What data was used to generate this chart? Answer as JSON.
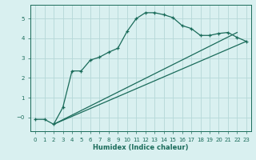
{
  "xlabel": "Humidex (Indice chaleur)",
  "bg_color": "#d9f0f0",
  "grid_color": "#b5d8d8",
  "line_color": "#1a6b5a",
  "xlim": [
    -0.5,
    23.5
  ],
  "ylim": [
    -0.7,
    5.7
  ],
  "ytick_values": [
    0,
    1,
    2,
    3,
    4,
    5
  ],
  "ytick_labels": [
    "−0",
    "1",
    "2",
    "3",
    "4",
    "5"
  ],
  "series1_x": [
    0,
    1,
    2,
    3,
    4,
    5,
    6,
    7,
    8,
    9,
    10,
    11,
    12,
    13,
    14,
    15,
    16,
    17,
    18,
    19,
    20,
    21,
    22,
    23
  ],
  "series1_y": [
    -0.1,
    -0.1,
    -0.35,
    0.5,
    2.35,
    2.35,
    2.9,
    3.05,
    3.3,
    3.5,
    4.35,
    5.0,
    5.3,
    5.3,
    5.2,
    5.05,
    4.65,
    4.5,
    4.15,
    4.15,
    4.25,
    4.3,
    4.05,
    3.85
  ],
  "series2_x": [
    2,
    22
  ],
  "series2_y": [
    -0.35,
    4.3
  ],
  "series3_x": [
    2,
    23
  ],
  "series3_y": [
    -0.35,
    3.85
  ]
}
